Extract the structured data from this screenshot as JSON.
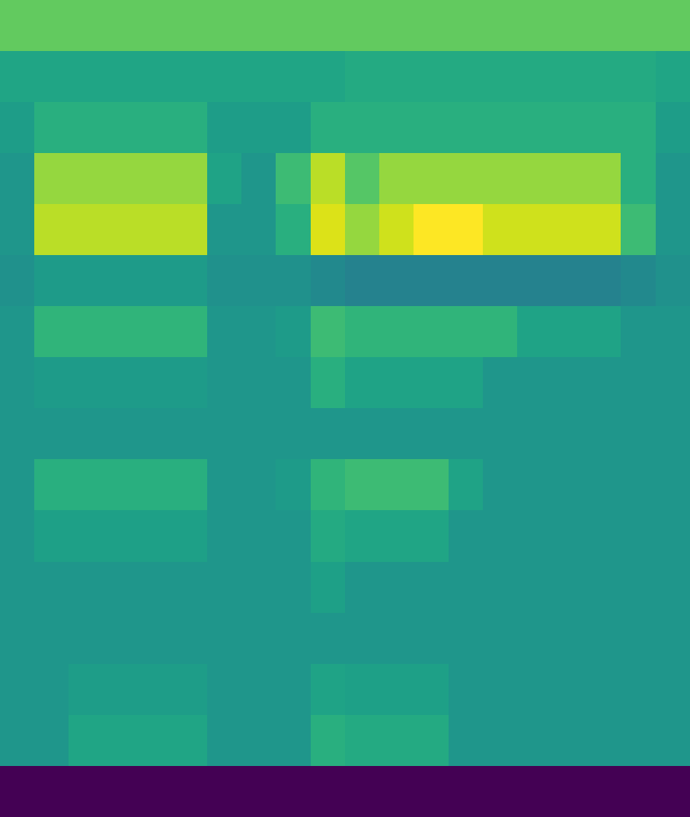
{
  "chart_data": {
    "type": "heatmap",
    "color": "viridis",
    "tick_labels": false,
    "cells": [
      [
        0.72,
        0.72,
        0.72,
        0.72,
        0.72,
        0.72,
        0.72,
        0.72,
        0.72,
        0.72,
        0.72,
        0.72,
        0.72,
        0.72,
        0.72,
        0.72,
        0.72,
        0.72,
        0.72,
        0.72
      ],
      [
        0.56,
        0.56,
        0.56,
        0.56,
        0.56,
        0.56,
        0.56,
        0.56,
        0.56,
        0.56,
        0.58,
        0.58,
        0.58,
        0.58,
        0.58,
        0.58,
        0.58,
        0.58,
        0.58,
        0.56
      ],
      [
        0.53,
        0.6,
        0.6,
        0.6,
        0.6,
        0.6,
        0.53,
        0.53,
        0.53,
        0.6,
        0.6,
        0.6,
        0.6,
        0.6,
        0.6,
        0.6,
        0.6,
        0.6,
        0.6,
        0.53
      ],
      [
        0.5,
        0.8,
        0.8,
        0.8,
        0.8,
        0.8,
        0.55,
        0.5,
        0.65,
        0.85,
        0.7,
        0.8,
        0.8,
        0.8,
        0.8,
        0.8,
        0.8,
        0.8,
        0.6,
        0.5
      ],
      [
        0.5,
        0.85,
        0.85,
        0.85,
        0.85,
        0.85,
        0.5,
        0.5,
        0.6,
        0.9,
        0.8,
        0.88,
        0.95,
        0.95,
        0.88,
        0.88,
        0.88,
        0.88,
        0.65,
        0.5
      ],
      [
        0.48,
        0.52,
        0.52,
        0.52,
        0.52,
        0.52,
        0.48,
        0.48,
        0.48,
        0.45,
        0.42,
        0.42,
        0.42,
        0.42,
        0.42,
        0.42,
        0.42,
        0.42,
        0.45,
        0.48
      ],
      [
        0.5,
        0.62,
        0.62,
        0.62,
        0.62,
        0.62,
        0.5,
        0.5,
        0.52,
        0.65,
        0.62,
        0.62,
        0.62,
        0.62,
        0.62,
        0.55,
        0.55,
        0.55,
        0.5,
        0.5
      ],
      [
        0.5,
        0.52,
        0.52,
        0.52,
        0.52,
        0.52,
        0.5,
        0.5,
        0.5,
        0.6,
        0.55,
        0.55,
        0.55,
        0.55,
        0.5,
        0.5,
        0.5,
        0.5,
        0.5,
        0.5
      ],
      [
        0.5,
        0.5,
        0.5,
        0.5,
        0.5,
        0.5,
        0.5,
        0.5,
        0.5,
        0.5,
        0.5,
        0.5,
        0.5,
        0.5,
        0.5,
        0.5,
        0.5,
        0.5,
        0.5,
        0.5
      ],
      [
        0.5,
        0.6,
        0.6,
        0.6,
        0.6,
        0.6,
        0.5,
        0.5,
        0.52,
        0.62,
        0.65,
        0.65,
        0.65,
        0.55,
        0.5,
        0.5,
        0.5,
        0.5,
        0.5,
        0.5
      ],
      [
        0.5,
        0.54,
        0.54,
        0.54,
        0.54,
        0.54,
        0.5,
        0.5,
        0.5,
        0.58,
        0.56,
        0.56,
        0.56,
        0.5,
        0.5,
        0.5,
        0.5,
        0.5,
        0.5,
        0.5
      ],
      [
        0.5,
        0.5,
        0.5,
        0.5,
        0.5,
        0.5,
        0.5,
        0.5,
        0.5,
        0.54,
        0.5,
        0.5,
        0.5,
        0.5,
        0.5,
        0.5,
        0.5,
        0.5,
        0.5,
        0.5
      ],
      [
        0.5,
        0.5,
        0.5,
        0.5,
        0.5,
        0.5,
        0.5,
        0.5,
        0.5,
        0.5,
        0.5,
        0.5,
        0.5,
        0.5,
        0.5,
        0.5,
        0.5,
        0.5,
        0.5,
        0.5
      ],
      [
        0.5,
        0.5,
        0.53,
        0.53,
        0.53,
        0.53,
        0.5,
        0.5,
        0.5,
        0.55,
        0.54,
        0.54,
        0.54,
        0.5,
        0.5,
        0.5,
        0.5,
        0.5,
        0.5,
        0.5
      ],
      [
        0.5,
        0.5,
        0.56,
        0.56,
        0.56,
        0.56,
        0.5,
        0.5,
        0.5,
        0.6,
        0.58,
        0.58,
        0.58,
        0.5,
        0.5,
        0.5,
        0.5,
        0.5,
        0.5,
        0.5
      ],
      [
        0.0,
        0.0,
        0.0,
        0.0,
        0.0,
        0.0,
        0.0,
        0.0,
        0.0,
        0.0,
        0.0,
        0.0,
        0.0,
        0.0,
        0.0,
        0.0,
        0.0,
        0.0,
        0.0,
        0.0
      ]
    ]
  }
}
